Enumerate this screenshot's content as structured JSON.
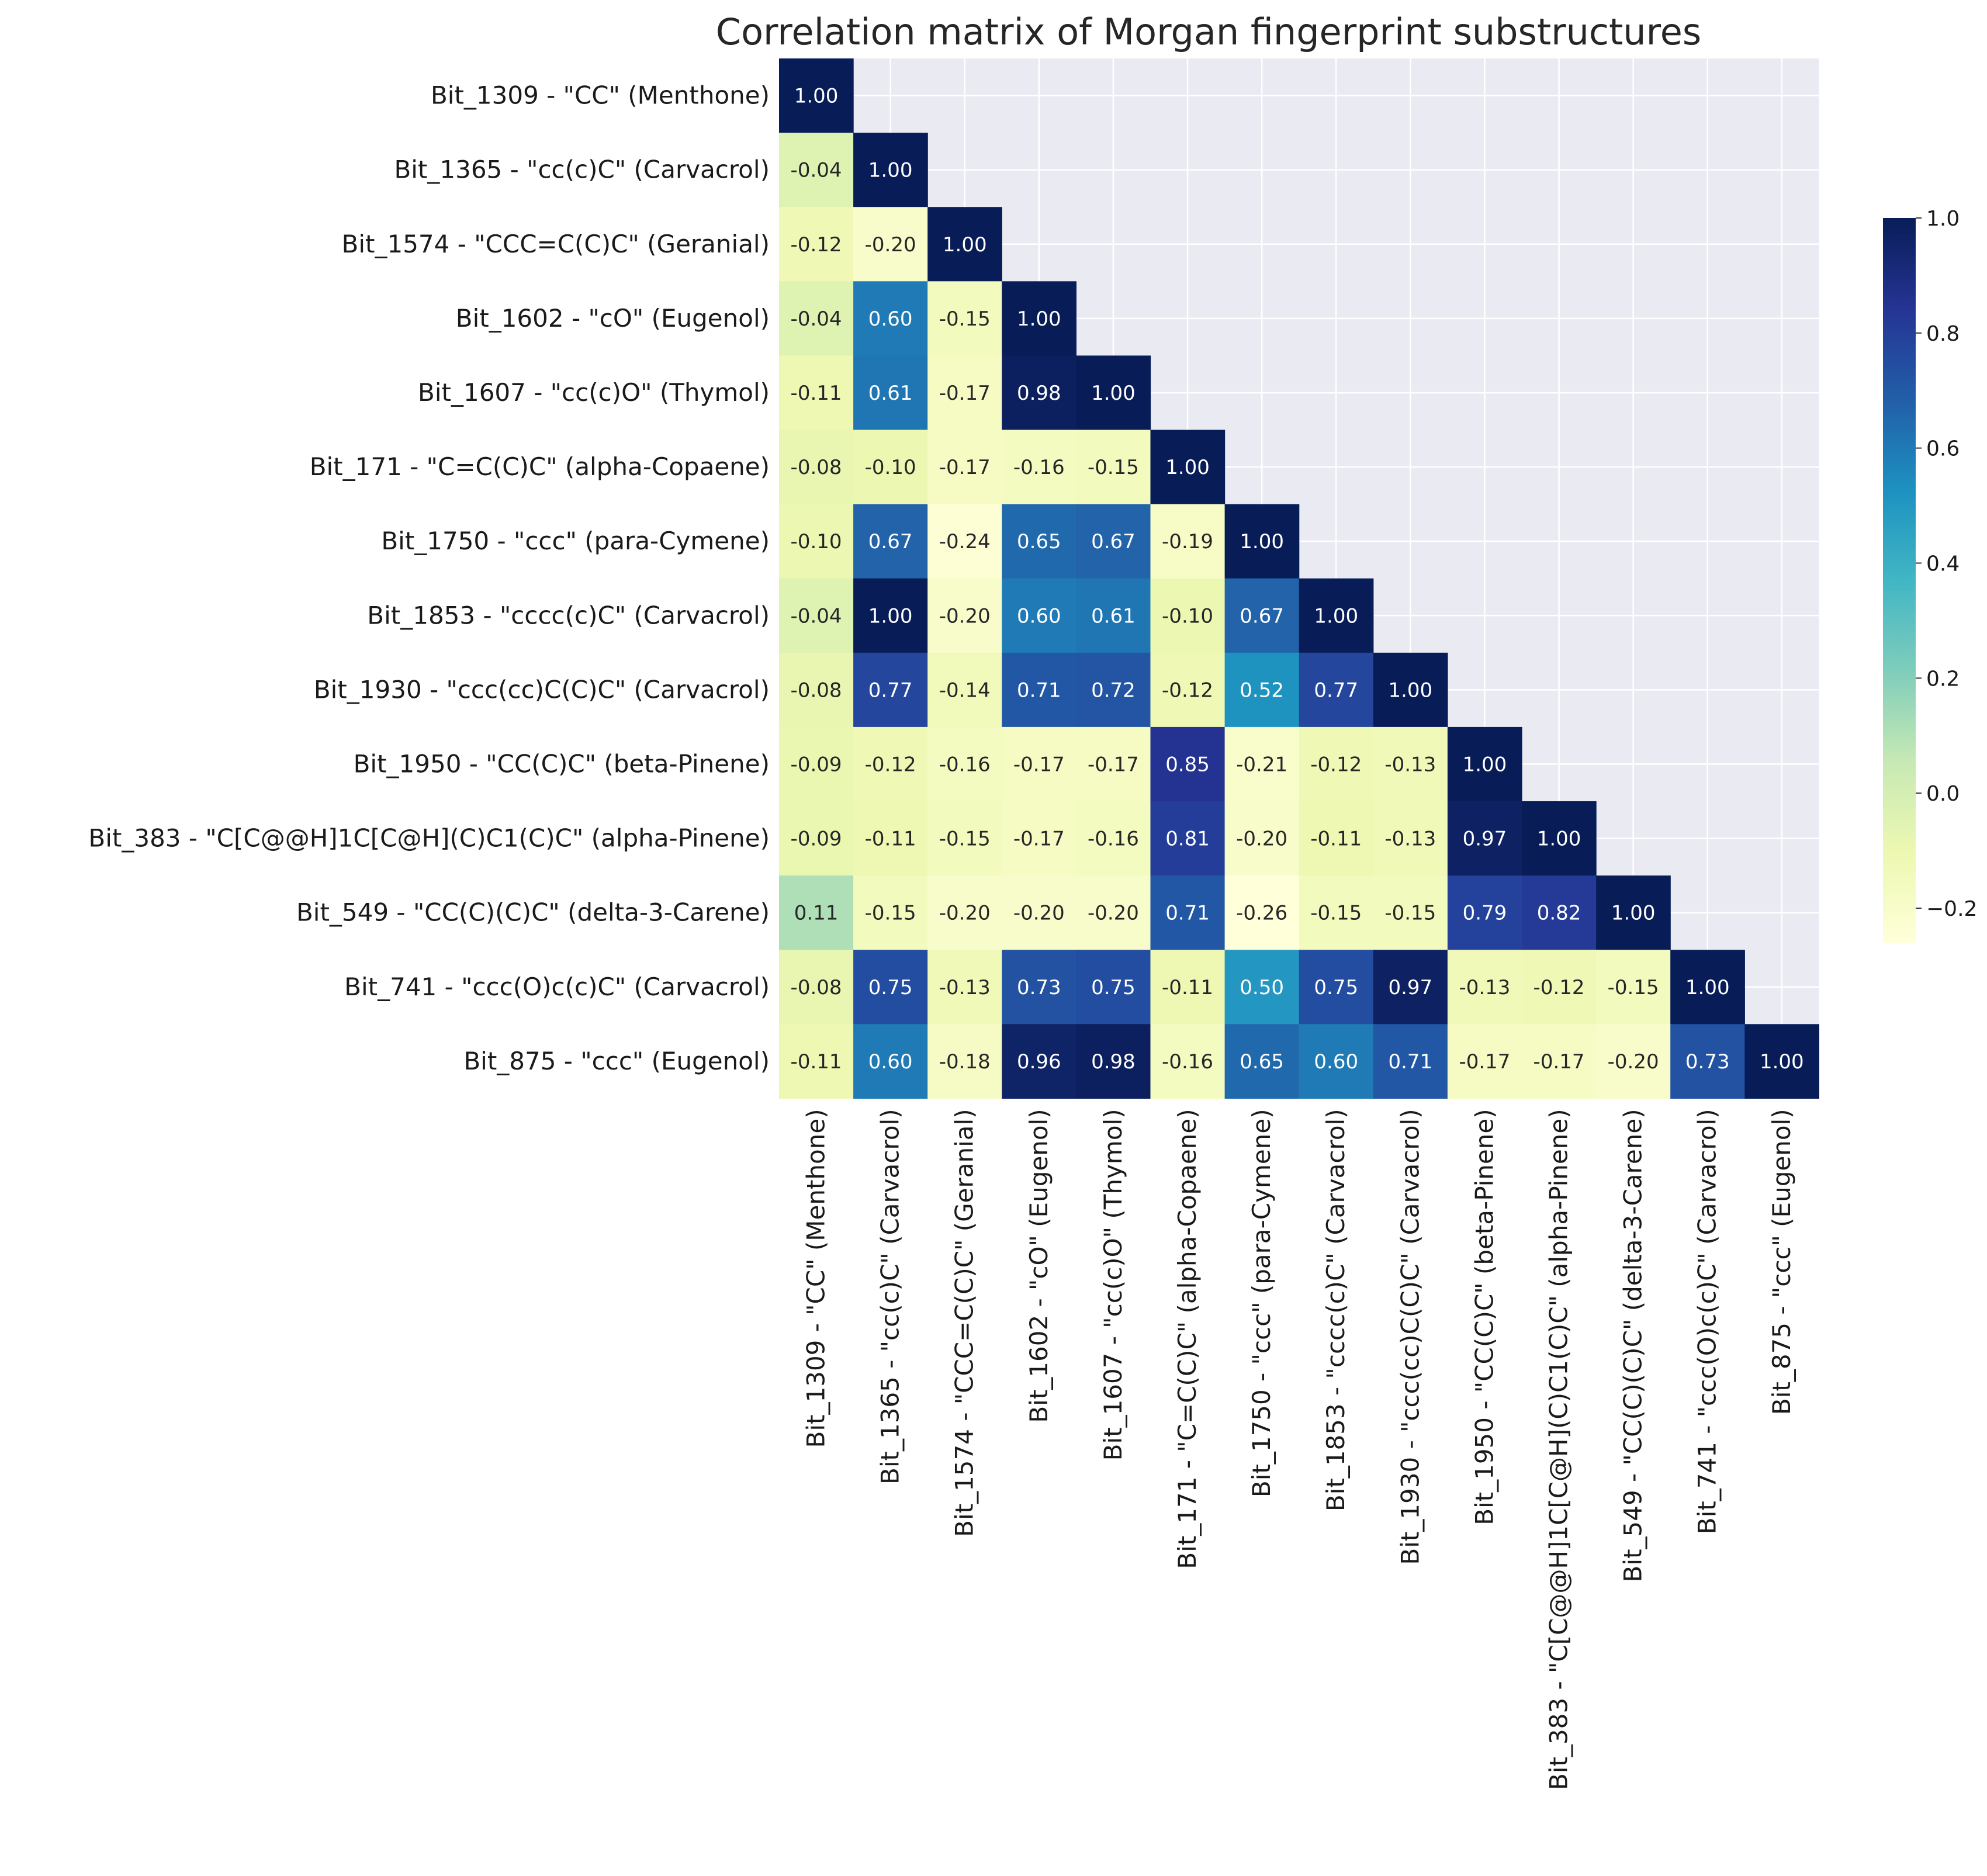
{
  "chart_data": {
    "type": "heatmap",
    "title": "Correlation matrix of Morgan fingerprint substructures",
    "labels": [
      "Bit_1309 - \"CC\" (Menthone)",
      "Bit_1365 - \"cc(c)C\" (Carvacrol)",
      "Bit_1574 - \"CCC=C(C)C\" (Geranial)",
      "Bit_1602 - \"cO\" (Eugenol)",
      "Bit_1607 - \"cc(c)O\" (Thymol)",
      "Bit_171 - \"C=C(C)C\" (alpha-Copaene)",
      "Bit_1750 - \"ccc\" (para-Cymene)",
      "Bit_1853 - \"cccc(c)C\" (Carvacrol)",
      "Bit_1930 - \"ccc(cc)C(C)C\" (Carvacrol)",
      "Bit_1950 - \"CC(C)C\" (beta-Pinene)",
      "Bit_383 - \"C[C@@H]1C[C@H](C)C1(C)C\" (alpha-Pinene)",
      "Bit_549 - \"CC(C)(C)C\" (delta-3-Carene)",
      "Bit_741 - \"ccc(O)c(c)C\" (Carvacrol)",
      "Bit_875 - \"ccc\" (Eugenol)"
    ],
    "values": [
      [
        1.0
      ],
      [
        -0.04,
        1.0
      ],
      [
        -0.12,
        -0.2,
        1.0
      ],
      [
        -0.04,
        0.6,
        -0.15,
        1.0
      ],
      [
        -0.11,
        0.61,
        -0.17,
        0.98,
        1.0
      ],
      [
        -0.08,
        -0.1,
        -0.17,
        -0.16,
        -0.15,
        1.0
      ],
      [
        -0.1,
        0.67,
        -0.24,
        0.65,
        0.67,
        -0.19,
        1.0
      ],
      [
        -0.04,
        1.0,
        -0.2,
        0.6,
        0.61,
        -0.1,
        0.67,
        1.0
      ],
      [
        -0.08,
        0.77,
        -0.14,
        0.71,
        0.72,
        -0.12,
        0.52,
        0.77,
        1.0
      ],
      [
        -0.09,
        -0.12,
        -0.16,
        -0.17,
        -0.17,
        0.85,
        -0.21,
        -0.12,
        -0.13,
        1.0
      ],
      [
        -0.09,
        -0.11,
        -0.15,
        -0.17,
        -0.16,
        0.81,
        -0.2,
        -0.11,
        -0.13,
        0.97,
        1.0
      ],
      [
        0.11,
        -0.15,
        -0.2,
        -0.2,
        -0.2,
        0.71,
        -0.26,
        -0.15,
        -0.15,
        0.79,
        0.82,
        1.0
      ],
      [
        -0.08,
        0.75,
        -0.13,
        0.73,
        0.75,
        -0.11,
        0.5,
        0.75,
        0.97,
        -0.13,
        -0.12,
        -0.15,
        1.0
      ],
      [
        -0.11,
        0.6,
        -0.18,
        0.96,
        0.98,
        -0.16,
        0.65,
        0.6,
        0.71,
        -0.17,
        -0.17,
        -0.2,
        0.73,
        1.0
      ]
    ],
    "mask": "upper triangle hidden",
    "value_format": "2 decimals",
    "colormap": "YlGnBu",
    "colormap_stops": [
      "#ffffd9",
      "#edf8b1",
      "#c7e9b4",
      "#7fcdbb",
      "#41b6c4",
      "#1d91c0",
      "#225ea8",
      "#253494",
      "#081d58"
    ],
    "vmin": -0.26,
    "vmax": 1.0,
    "colorbar_ticks": [
      1.0,
      0.8,
      0.6,
      0.4,
      0.2,
      0.0,
      -0.2
    ],
    "colorbar_tick_labels": [
      "1.0",
      "0.8",
      "0.6",
      "0.4",
      "0.2",
      "0.0",
      "−0.2"
    ],
    "background_color": "#eaeaf2",
    "grid_color": "#ffffff",
    "grid": true
  }
}
